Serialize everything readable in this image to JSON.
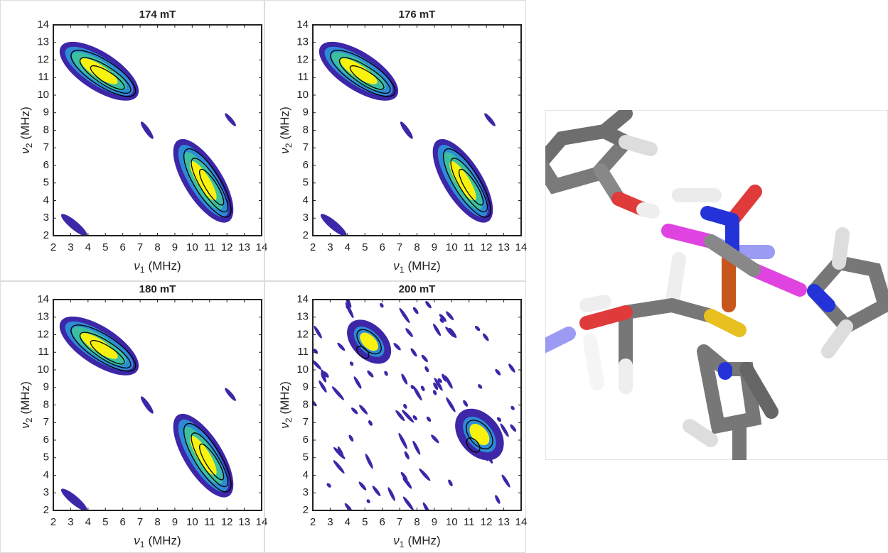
{
  "chart_data": [
    {
      "type": "contour",
      "title": "174 mT",
      "xlabel": {
        "symbol": "ν",
        "subscript": "1",
        "unit": "(MHz)"
      },
      "ylabel": {
        "symbol": "ν",
        "subscript": "2",
        "unit": "(MHz)"
      },
      "xlim": [
        2,
        14
      ],
      "ylim": [
        2,
        14
      ],
      "xticks": [
        2,
        3,
        4,
        5,
        6,
        7,
        8,
        9,
        10,
        11,
        12,
        13,
        14
      ],
      "yticks": [
        2,
        3,
        4,
        5,
        6,
        7,
        8,
        9,
        10,
        11,
        12,
        13,
        14
      ]
    },
    {
      "type": "contour",
      "title": "176 mT",
      "xlabel": {
        "symbol": "ν",
        "subscript": "1",
        "unit": "(MHz)"
      },
      "ylabel": {
        "symbol": "ν",
        "subscript": "2",
        "unit": "(MHz)"
      },
      "xlim": [
        2,
        14
      ],
      "ylim": [
        2,
        14
      ],
      "xticks": [
        2,
        3,
        4,
        5,
        6,
        7,
        8,
        9,
        10,
        11,
        12,
        13,
        14
      ],
      "yticks": [
        2,
        3,
        4,
        5,
        6,
        7,
        8,
        9,
        10,
        11,
        12,
        13,
        14
      ]
    },
    {
      "type": "contour",
      "title": "180 mT",
      "xlabel": {
        "symbol": "ν",
        "subscript": "1",
        "unit": "(MHz)"
      },
      "ylabel": {
        "symbol": "ν",
        "subscript": "2",
        "unit": "(MHz)"
      },
      "xlim": [
        2,
        14
      ],
      "ylim": [
        2,
        14
      ],
      "xticks": [
        2,
        3,
        4,
        5,
        6,
        7,
        8,
        9,
        10,
        11,
        12,
        13,
        14
      ],
      "yticks": [
        2,
        3,
        4,
        5,
        6,
        7,
        8,
        9,
        10,
        11,
        12,
        13,
        14
      ]
    },
    {
      "type": "contour",
      "title": "200 mT",
      "xlabel": {
        "symbol": "ν",
        "subscript": "1",
        "unit": "(MHz)"
      },
      "ylabel": {
        "symbol": "ν",
        "subscript": "2",
        "unit": "(MHz)"
      },
      "xlim": [
        2,
        14
      ],
      "ylim": [
        2,
        14
      ],
      "xticks": [
        2,
        3,
        4,
        5,
        6,
        7,
        8,
        9,
        10,
        11,
        12,
        13,
        14
      ],
      "yticks": [
        2,
        3,
        4,
        5,
        6,
        7,
        8,
        9,
        10,
        11,
        12,
        13,
        14
      ]
    }
  ]
}
